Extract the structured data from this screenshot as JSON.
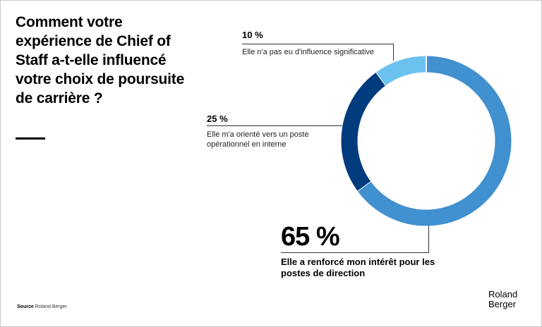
{
  "title": "Comment votre expérience de Chief of Staff a-t-elle influencé votre choix de poursuite de carrière ?",
  "source_label": "Source",
  "source_value": "Roland Berger",
  "logo": {
    "line1": "Roland",
    "line2": "Berger"
  },
  "chart_data": {
    "type": "pie",
    "variant": "donut",
    "title": "Comment votre expérience de Chief of Staff a-t-elle influencé votre choix de poursuite de carrière ?",
    "slices": [
      {
        "label": "Elle a renforcé mon intérêt pour les postes de direction",
        "value": 65,
        "display": "65 %",
        "color": "#4190cf"
      },
      {
        "label": "Elle m'a orienté vers un poste opérationnel en interne",
        "value": 25,
        "display": "25 %",
        "color": "#003b7e"
      },
      {
        "label": "Elle n'a pas eu d'influence significative",
        "value": 10,
        "display": "10 %",
        "color": "#6cc2ef"
      }
    ]
  }
}
